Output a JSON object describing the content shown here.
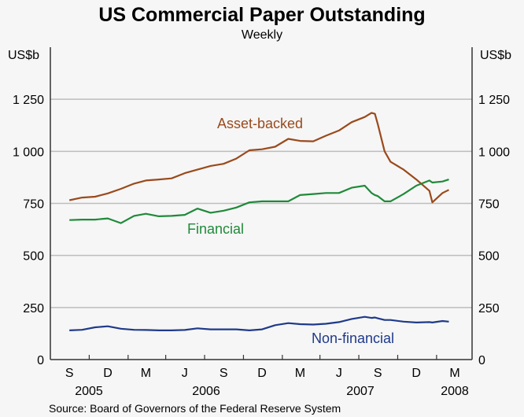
{
  "chart_data": {
    "type": "line",
    "title": "US Commercial Paper Outstanding",
    "subtitle": "Weekly",
    "ylabel_left": "US$b",
    "ylabel_right": "US$b",
    "ylim": [
      0,
      1500
    ],
    "yticks": [
      0,
      250,
      500,
      750,
      1000,
      1250
    ],
    "ytick_labels": [
      "0",
      "250",
      "500",
      "750",
      "1 000",
      "1 250"
    ],
    "xlim": [
      "2005-08-01",
      "2008-04-25"
    ],
    "xtick_labels": [
      {
        "label": "S",
        "date": "2005-09-15"
      },
      {
        "label": "D",
        "date": "2005-12-15"
      },
      {
        "label": "M",
        "date": "2006-03-15"
      },
      {
        "label": "J",
        "date": "2006-06-15"
      },
      {
        "label": "S",
        "date": "2006-09-15"
      },
      {
        "label": "D",
        "date": "2006-12-15"
      },
      {
        "label": "M",
        "date": "2007-03-15"
      },
      {
        "label": "J",
        "date": "2007-06-15"
      },
      {
        "label": "S",
        "date": "2007-09-15"
      },
      {
        "label": "D",
        "date": "2007-12-15"
      },
      {
        "label": "M",
        "date": "2008-03-15"
      }
    ],
    "year_labels": [
      {
        "label": "2005",
        "date": "2005-11-01"
      },
      {
        "label": "2006",
        "date": "2006-07-01"
      },
      {
        "label": "2007",
        "date": "2007-07-01"
      },
      {
        "label": "2008",
        "date": "2008-03-15"
      }
    ],
    "grid": true,
    "x": [
      "2005-09-15",
      "2005-10-15",
      "2005-11-15",
      "2005-12-15",
      "2006-01-15",
      "2006-02-15",
      "2006-03-15",
      "2006-04-15",
      "2006-05-15",
      "2006-06-15",
      "2006-07-15",
      "2006-08-15",
      "2006-09-15",
      "2006-10-15",
      "2006-11-15",
      "2006-12-15",
      "2007-01-15",
      "2007-02-15",
      "2007-03-15",
      "2007-04-15",
      "2007-05-15",
      "2007-06-15",
      "2007-07-15",
      "2007-08-15",
      "2007-08-31",
      "2007-09-08",
      "2007-09-15",
      "2007-10-01",
      "2007-10-15",
      "2007-11-15",
      "2007-12-15",
      "2008-01-15",
      "2008-01-22",
      "2008-02-15",
      "2008-03-01"
    ],
    "series": [
      {
        "name": "Asset-backed",
        "color": "#9a4a1c",
        "values": [
          765,
          778,
          782,
          798,
          820,
          845,
          860,
          865,
          870,
          895,
          912,
          930,
          940,
          965,
          1005,
          1010,
          1022,
          1060,
          1050,
          1048,
          1075,
          1100,
          1140,
          1165,
          1185,
          1180,
          1130,
          1000,
          950,
          912,
          865,
          810,
          755,
          800,
          815
        ]
      },
      {
        "name": "Financial",
        "color": "#1f8a3a",
        "values": [
          670,
          672,
          672,
          678,
          655,
          690,
          700,
          688,
          690,
          695,
          725,
          705,
          715,
          730,
          755,
          760,
          760,
          760,
          790,
          795,
          800,
          800,
          825,
          835,
          800,
          790,
          785,
          760,
          760,
          795,
          835,
          860,
          850,
          855,
          865
        ]
      },
      {
        "name": "Non-financial",
        "color": "#1f3a8a",
        "values": [
          140,
          143,
          155,
          160,
          148,
          143,
          142,
          140,
          140,
          142,
          150,
          145,
          145,
          145,
          140,
          145,
          165,
          175,
          170,
          168,
          172,
          180,
          195,
          205,
          200,
          202,
          198,
          190,
          190,
          182,
          178,
          180,
          178,
          185,
          182
        ]
      }
    ],
    "source": "Source: Board of Governors of the Federal Reserve System"
  }
}
